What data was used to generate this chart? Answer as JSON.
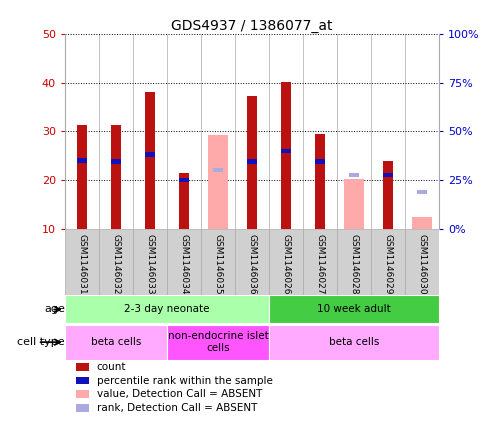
{
  "title": "GDS4937 / 1386077_at",
  "samples": [
    "GSM1146031",
    "GSM1146032",
    "GSM1146033",
    "GSM1146034",
    "GSM1146035",
    "GSM1146036",
    "GSM1146026",
    "GSM1146027",
    "GSM1146028",
    "GSM1146029",
    "GSM1146030"
  ],
  "red_values": [
    31.2,
    31.2,
    38.0,
    21.5,
    null,
    37.2,
    40.2,
    29.5,
    null,
    23.8,
    null
  ],
  "blue_values": [
    24.0,
    23.8,
    25.2,
    20.0,
    null,
    23.8,
    26.0,
    23.8,
    null,
    21.0,
    null
  ],
  "pink_values": [
    null,
    null,
    null,
    null,
    29.3,
    null,
    null,
    null,
    20.3,
    null,
    12.5
  ],
  "lblue_values": [
    null,
    null,
    null,
    null,
    22.0,
    null,
    null,
    null,
    21.0,
    null,
    17.5
  ],
  "ylim_left": [
    10,
    50
  ],
  "ylim_right": [
    0,
    100
  ],
  "yticks_left": [
    10,
    20,
    30,
    40,
    50
  ],
  "ytick_labels_right": [
    "0%",
    "25%",
    "50%",
    "75%",
    "100%"
  ],
  "ylabel_left_color": "#cc0000",
  "ylabel_right_color": "#0000cc",
  "red_color": "#bb1111",
  "blue_color": "#1111bb",
  "pink_color": "#ffaaaa",
  "lblue_color": "#aaaadd",
  "bg_color": "#ffffff",
  "age_groups": [
    {
      "label": "2-3 day neonate",
      "start": 0,
      "end": 6,
      "color": "#aaffaa"
    },
    {
      "label": "10 week adult",
      "start": 6,
      "end": 11,
      "color": "#44cc44"
    }
  ],
  "cell_groups": [
    {
      "label": "beta cells",
      "start": 0,
      "end": 3,
      "color": "#ffaaff"
    },
    {
      "label": "non-endocrine islet\ncells",
      "start": 3,
      "end": 6,
      "color": "#ff55ff"
    },
    {
      "label": "beta cells",
      "start": 6,
      "end": 11,
      "color": "#ffaaff"
    }
  ],
  "legend_items": [
    {
      "color": "#bb1111",
      "label": "count"
    },
    {
      "color": "#1111bb",
      "label": "percentile rank within the sample"
    },
    {
      "color": "#ffaaaa",
      "label": "value, Detection Call = ABSENT"
    },
    {
      "color": "#aaaadd",
      "label": "rank, Detection Call = ABSENT"
    }
  ]
}
